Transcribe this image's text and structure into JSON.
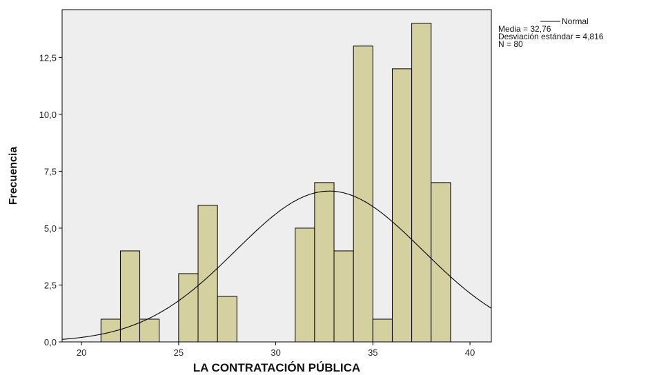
{
  "chart_data": {
    "type": "bar",
    "subtype": "histogram",
    "xlabel": "LA CONTRATACIÓN PÚBLICA",
    "ylabel": "Frecuencia",
    "xlim": [
      19,
      41.1
    ],
    "ylim": [
      0,
      14.6
    ],
    "x_ticks": [
      20,
      25,
      30,
      35,
      40
    ],
    "x_tick_labels": [
      "20",
      "25",
      "30",
      "35",
      "40"
    ],
    "y_ticks": [
      0,
      2.5,
      5,
      7.5,
      10,
      12.5
    ],
    "y_tick_labels": [
      "0,0",
      "2,5",
      "5,0",
      "7,5",
      "10,0",
      "12,5"
    ],
    "bin_width": 1,
    "bins": [
      {
        "center": 21.5,
        "value": 1
      },
      {
        "center": 22.5,
        "value": 4
      },
      {
        "center": 23.5,
        "value": 1
      },
      {
        "center": 24.5,
        "value": 0
      },
      {
        "center": 25.5,
        "value": 3
      },
      {
        "center": 26.5,
        "value": 6
      },
      {
        "center": 27.5,
        "value": 2
      },
      {
        "center": 28.5,
        "value": 0
      },
      {
        "center": 29.5,
        "value": 0
      },
      {
        "center": 30.5,
        "value": 0
      },
      {
        "center": 31.5,
        "value": 5
      },
      {
        "center": 32.5,
        "value": 7
      },
      {
        "center": 33.5,
        "value": 4
      },
      {
        "center": 34.5,
        "value": 13
      },
      {
        "center": 35.5,
        "value": 1
      },
      {
        "center": 36.5,
        "value": 12
      },
      {
        "center": 37.5,
        "value": 14
      },
      {
        "center": 38.5,
        "value": 7
      }
    ],
    "normal_curve": {
      "name": "Normal",
      "mean": 32.76,
      "sd": 4.816,
      "n": 80
    },
    "legend": {
      "placement": "top-right",
      "series_label": "Normal",
      "stats": [
        "Media = 32,76",
        "Desviación estándar = 4,816",
        "N = 80"
      ]
    },
    "grid": false,
    "colors": {
      "bar_fill": "#D5D0A0",
      "bar_stroke": "#000000",
      "plot_background": "#EEEEEE",
      "curve": "#000000"
    }
  }
}
